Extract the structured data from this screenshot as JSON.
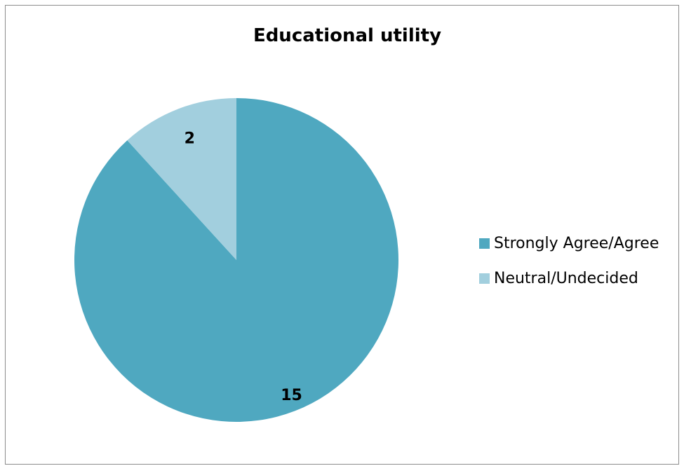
{
  "chart_data": {
    "type": "pie",
    "title": "Educational utility",
    "categories": [
      "Strongly Agree/Agree",
      "Neutral/Undecided"
    ],
    "values": [
      15,
      2
    ],
    "colors": [
      "#4fa8c0",
      "#a2cfde"
    ],
    "data_labels": [
      "15",
      "2"
    ],
    "legend": "right"
  }
}
